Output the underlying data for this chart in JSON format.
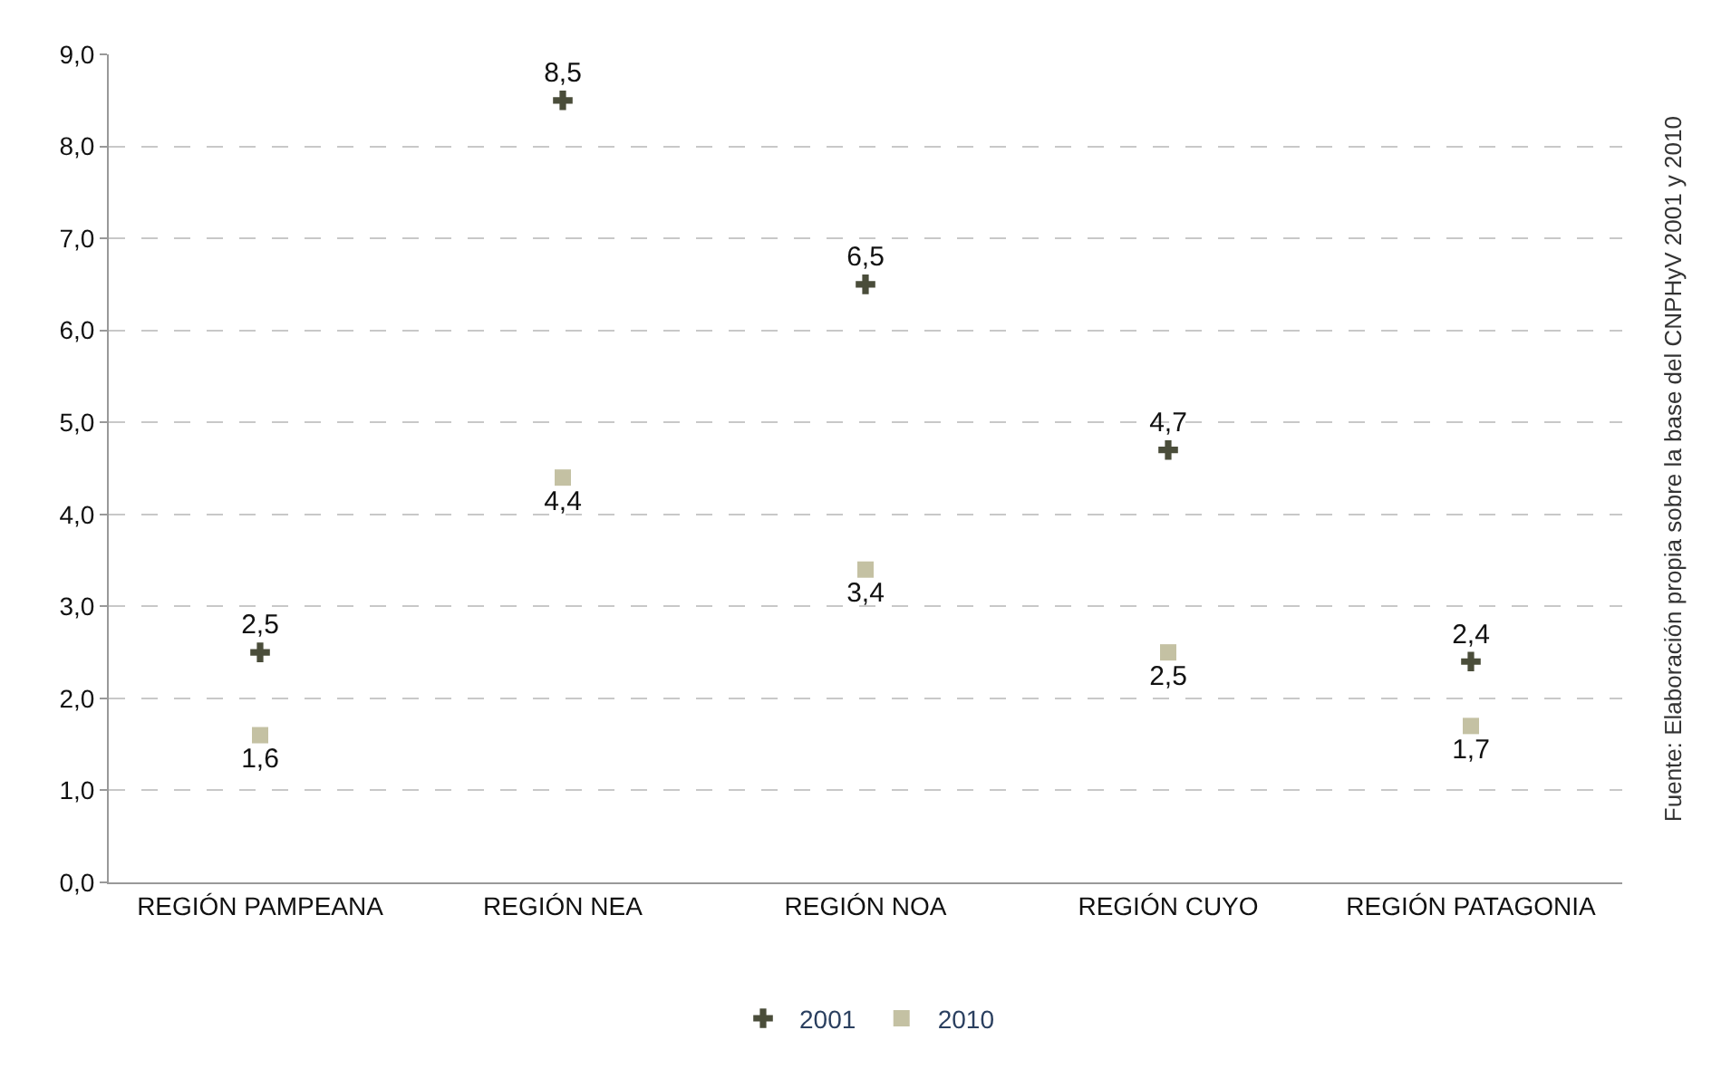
{
  "chart_data": {
    "type": "scatter",
    "categories": [
      "REGIÓN PAMPEANA",
      "REGIÓN NEA",
      "REGIÓN NOA",
      "REGIÓN CUYO",
      "REGIÓN PATAGONIA"
    ],
    "series": [
      {
        "name": "2001",
        "color": "#4a4d3a",
        "marker": "cross",
        "values": [
          2.5,
          8.5,
          6.5,
          4.7,
          2.4
        ],
        "value_labels": [
          "2,5",
          "8,5",
          "6,5",
          "4,7",
          "2,4"
        ]
      },
      {
        "name": "2010",
        "color": "#c4c1a3",
        "marker": "square",
        "values": [
          1.6,
          4.4,
          3.4,
          2.5,
          1.7
        ],
        "value_labels": [
          "1,6",
          "4,4",
          "3,4",
          "2,5",
          "1,7"
        ]
      }
    ],
    "ylim": [
      0,
      9
    ],
    "yticks": [
      {
        "value": 0,
        "label": "0,0"
      },
      {
        "value": 1,
        "label": "1,0"
      },
      {
        "value": 2,
        "label": "2,0"
      },
      {
        "value": 3,
        "label": "3,0"
      },
      {
        "value": 4,
        "label": "4,0"
      },
      {
        "value": 5,
        "label": "5,0"
      },
      {
        "value": 6,
        "label": "6,0"
      },
      {
        "value": 7,
        "label": "7,0"
      },
      {
        "value": 8,
        "label": "8,0"
      },
      {
        "value": 9,
        "label": "9,0"
      }
    ],
    "grid": "y",
    "legend": "bottom",
    "annotations": [
      "Fuente: Elaboración propia sobre la base del CNPHyV 2001 y 2010"
    ]
  }
}
